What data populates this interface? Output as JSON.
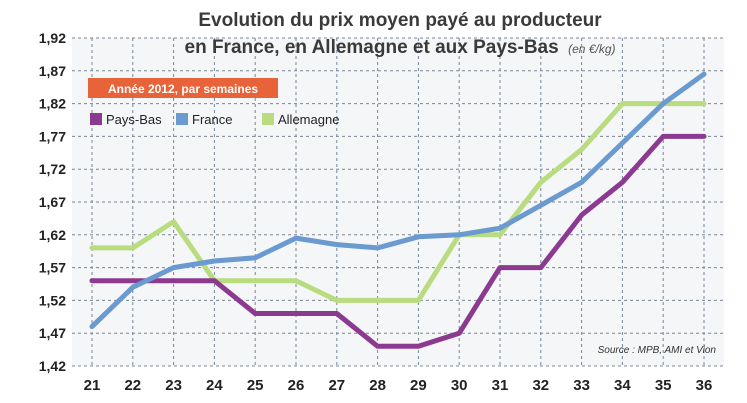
{
  "chart_data": {
    "type": "line",
    "title_line1": "Evolution du prix moyen payé au producteur",
    "title_line2": "en France, en Allemagne et aux Pays-Bas",
    "unit": "(en €/kg)",
    "subtitle": "Année 2012, par semaines",
    "source": "Source : MPB, AMI et Vion",
    "xlabel": "",
    "ylabel": "",
    "x": [
      "21",
      "22",
      "23",
      "24",
      "25",
      "26",
      "27",
      "28",
      "29",
      "30",
      "31",
      "32",
      "33",
      "34",
      "35",
      "36"
    ],
    "y_ticks": [
      "1,42",
      "1,47",
      "1,52",
      "1,57",
      "1,62",
      "1,67",
      "1,72",
      "1,77",
      "1,82",
      "1,87",
      "1,92"
    ],
    "ylim": [
      1.42,
      1.92
    ],
    "grid": true,
    "legend_position": "top-left",
    "series": [
      {
        "name": "Pays-Bas",
        "color": "#8b3a8f",
        "values": [
          1.55,
          1.55,
          1.55,
          1.55,
          1.5,
          1.5,
          1.5,
          1.45,
          1.45,
          1.47,
          1.57,
          1.57,
          1.65,
          1.7,
          1.77,
          1.77
        ]
      },
      {
        "name": "France",
        "color": "#6a9ad0",
        "values": [
          1.48,
          1.54,
          1.57,
          1.58,
          1.585,
          1.615,
          1.605,
          1.6,
          1.617,
          1.62,
          1.63,
          1.665,
          1.7,
          1.76,
          1.82,
          1.865
        ]
      },
      {
        "name": "Allemagne",
        "color": "#b9dc7e",
        "values": [
          1.6,
          1.6,
          1.64,
          1.55,
          1.55,
          1.55,
          1.52,
          1.52,
          1.52,
          1.62,
          1.62,
          1.7,
          1.75,
          1.82,
          1.82,
          1.82
        ]
      }
    ],
    "badge_color": "#e8623a"
  }
}
